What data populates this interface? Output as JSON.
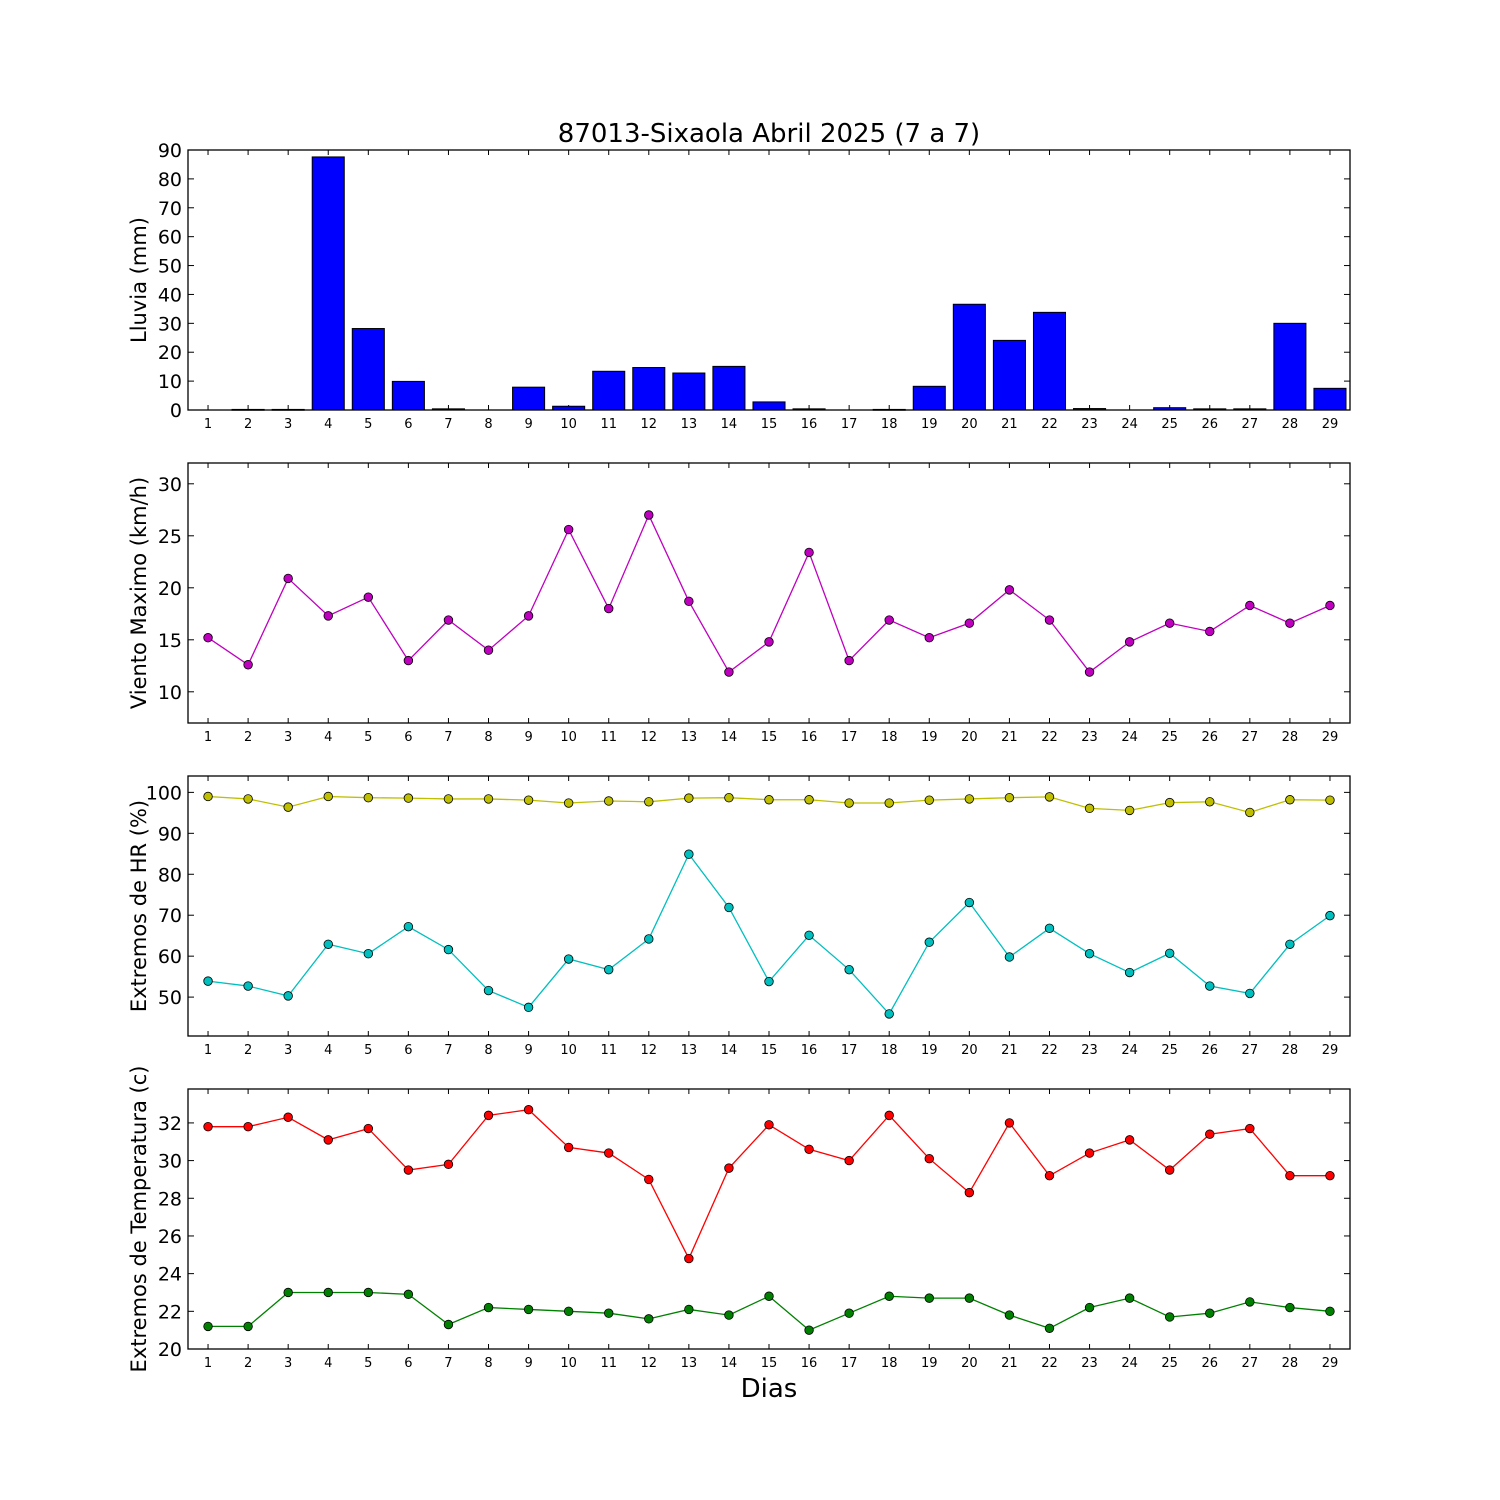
{
  "chart_data": [
    {
      "type": "bar",
      "title": "87013-Sixaola Abril 2025  (7 a 7)",
      "ylabel": "Lluvia (mm)",
      "ylim": [
        0,
        90
      ],
      "yticks": [
        0,
        10,
        20,
        30,
        40,
        50,
        60,
        70,
        80,
        90
      ],
      "categories": [
        "1",
        "2",
        "3",
        "4",
        "5",
        "6",
        "7",
        "8",
        "9",
        "10",
        "11",
        "12",
        "13",
        "14",
        "15",
        "16",
        "17",
        "18",
        "19",
        "20",
        "21",
        "22",
        "23",
        "24",
        "25",
        "26",
        "27",
        "28",
        "29"
      ],
      "series": [
        {
          "color": "#0000ff",
          "values": [
            0,
            0.2,
            0.2,
            87.6,
            28.2,
            9.9,
            0.4,
            0,
            7.9,
            1.3,
            13.4,
            14.7,
            12.8,
            15.1,
            2.8,
            0.4,
            0,
            0.2,
            8.2,
            36.6,
            24.1,
            33.8,
            0.5,
            0,
            0.8,
            0.4,
            0.4,
            30.0,
            7.5
          ]
        }
      ]
    },
    {
      "type": "line",
      "ylabel": "Viento Maximo (km/h)",
      "ylim": [
        7,
        32
      ],
      "yticks": [
        10,
        15,
        20,
        25,
        30
      ],
      "x": [
        1,
        2,
        3,
        4,
        5,
        6,
        7,
        8,
        9,
        10,
        11,
        12,
        13,
        14,
        15,
        16,
        17,
        18,
        19,
        20,
        21,
        22,
        23,
        24,
        25,
        26,
        27,
        28,
        29
      ],
      "series": [
        {
          "color": "#bf00bf",
          "values": [
            15.2,
            12.6,
            20.9,
            17.3,
            19.1,
            13.0,
            16.9,
            14.0,
            17.3,
            25.6,
            18.0,
            27.0,
            18.7,
            11.9,
            14.8,
            23.4,
            13.0,
            16.9,
            15.2,
            16.6,
            19.8,
            16.9,
            11.9,
            14.8,
            16.6,
            15.8,
            18.3,
            16.6,
            18.3
          ]
        }
      ]
    },
    {
      "type": "line",
      "ylabel": "Extremos de HR (%)",
      "ylim": [
        40.5,
        104
      ],
      "yticks": [
        50,
        60,
        70,
        80,
        90,
        100
      ],
      "x": [
        1,
        2,
        3,
        4,
        5,
        6,
        7,
        8,
        9,
        10,
        11,
        12,
        13,
        14,
        15,
        16,
        17,
        18,
        19,
        20,
        21,
        22,
        23,
        24,
        25,
        26,
        27,
        28,
        29
      ],
      "series": [
        {
          "color": "#bfbf00",
          "values": [
            99.0,
            98.4,
            96.4,
            99.0,
            98.7,
            98.6,
            98.4,
            98.4,
            98.1,
            97.4,
            97.9,
            97.7,
            98.6,
            98.7,
            98.2,
            98.2,
            97.4,
            97.4,
            98.1,
            98.4,
            98.7,
            98.9,
            96.1,
            95.6,
            97.5,
            97.7,
            95.1,
            98.2,
            98.1
          ]
        },
        {
          "color": "#00bfbf",
          "values": [
            53.9,
            52.7,
            50.3,
            62.9,
            60.6,
            67.2,
            61.6,
            51.6,
            47.5,
            59.3,
            56.7,
            64.2,
            84.9,
            71.9,
            53.8,
            65.1,
            56.7,
            45.9,
            63.4,
            73.1,
            59.8,
            66.8,
            60.6,
            56.0,
            60.7,
            52.7,
            50.9,
            62.9,
            69.9
          ]
        }
      ]
    },
    {
      "type": "line",
      "ylabel": "Extremos de Temperatura (c)",
      "xlabel": "Dias",
      "ylim": [
        20,
        33.8
      ],
      "yticks": [
        20,
        22,
        24,
        26,
        28,
        30,
        32
      ],
      "x": [
        1,
        2,
        3,
        4,
        5,
        6,
        7,
        8,
        9,
        10,
        11,
        12,
        13,
        14,
        15,
        16,
        17,
        18,
        19,
        20,
        21,
        22,
        23,
        24,
        25,
        26,
        27,
        28,
        29
      ],
      "series": [
        {
          "color": "#ff0000",
          "values": [
            31.8,
            31.8,
            32.3,
            31.1,
            31.7,
            29.5,
            29.8,
            32.4,
            32.7,
            30.7,
            30.4,
            29.0,
            24.8,
            29.6,
            31.9,
            30.6,
            30.0,
            32.4,
            30.1,
            28.3,
            32.0,
            29.2,
            30.4,
            31.1,
            29.5,
            31.4,
            31.7,
            29.2,
            29.2
          ]
        },
        {
          "color": "#008000",
          "values": [
            21.2,
            21.2,
            23.0,
            23.0,
            23.0,
            22.9,
            21.3,
            22.2,
            22.1,
            22.0,
            21.9,
            21.6,
            22.1,
            21.8,
            22.8,
            21.0,
            21.9,
            22.8,
            22.7,
            22.7,
            21.8,
            21.1,
            22.2,
            22.7,
            21.7,
            21.9,
            22.5,
            22.2,
            22.0
          ]
        }
      ]
    }
  ]
}
